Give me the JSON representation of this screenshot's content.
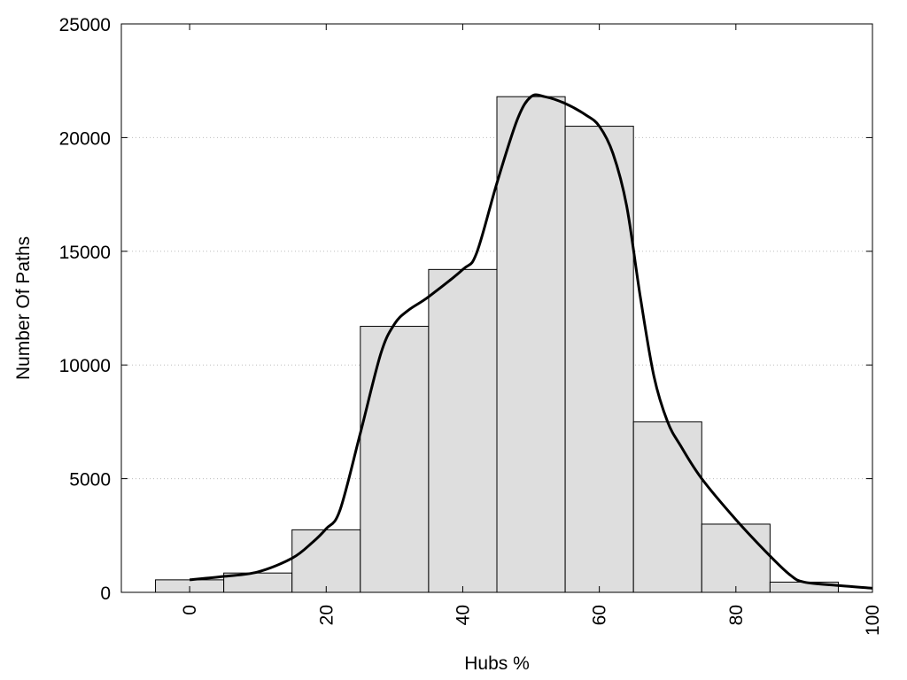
{
  "chart_data": {
    "type": "bar",
    "title": "",
    "xlabel": "Hubs %",
    "ylabel": "Number Of Paths",
    "xlim": [
      -10,
      100
    ],
    "ylim": [
      0,
      25000
    ],
    "grid": true,
    "x_ticks": [
      0,
      20,
      40,
      60,
      80,
      100
    ],
    "y_ticks": [
      0,
      5000,
      10000,
      15000,
      20000,
      25000
    ],
    "bin_width": 10,
    "bins": [
      {
        "center": 0,
        "value": 550
      },
      {
        "center": 10,
        "value": 850
      },
      {
        "center": 20,
        "value": 2750
      },
      {
        "center": 30,
        "value": 11700
      },
      {
        "center": 40,
        "value": 14200
      },
      {
        "center": 50,
        "value": 21800
      },
      {
        "center": 60,
        "value": 20500
      },
      {
        "center": 70,
        "value": 7500
      },
      {
        "center": 80,
        "value": 3000
      },
      {
        "center": 90,
        "value": 450
      }
    ],
    "density_curve": {
      "x": [
        0,
        5,
        10,
        15,
        18,
        20,
        22,
        25,
        28,
        30,
        32,
        35,
        40,
        42,
        45,
        48,
        50,
        52,
        55,
        58,
        60,
        62,
        64,
        66,
        68,
        70,
        72,
        75,
        80,
        85,
        88,
        90,
        95,
        100
      ],
      "y": [
        550,
        700,
        900,
        1500,
        2200,
        2800,
        3600,
        7000,
        10500,
        11800,
        12400,
        13000,
        14200,
        14900,
        18000,
        20800,
        21800,
        21800,
        21500,
        21000,
        20500,
        19300,
        17000,
        13000,
        9500,
        7500,
        6400,
        5000,
        3200,
        1600,
        750,
        450,
        300,
        180
      ]
    }
  }
}
